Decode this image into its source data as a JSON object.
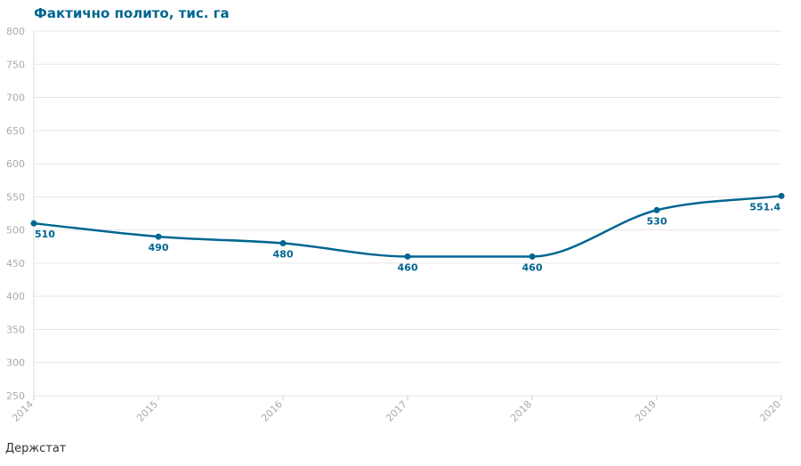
{
  "chart_data": {
    "type": "line",
    "title": "Фактично полито, тис. га",
    "xlabel": "",
    "ylabel": "",
    "x": [
      "2014",
      "2015",
      "2016",
      "2017",
      "2018",
      "2019",
      "2020"
    ],
    "series": [
      {
        "values": [
          510,
          490,
          480,
          460,
          460,
          530,
          551.4
        ]
      }
    ],
    "data_labels": [
      "510",
      "490",
      "480",
      "460",
      "460",
      "530",
      "551.4"
    ],
    "ylim": [
      250,
      800
    ],
    "yticks": [
      250,
      300,
      350,
      400,
      450,
      500,
      550,
      600,
      650,
      700,
      750,
      800
    ],
    "grid": true,
    "legend": "none",
    "source": "Держстат",
    "colors": {
      "line": "#006691",
      "grid": "#e6e6e6",
      "tick_text": "#aaaaaa"
    }
  }
}
